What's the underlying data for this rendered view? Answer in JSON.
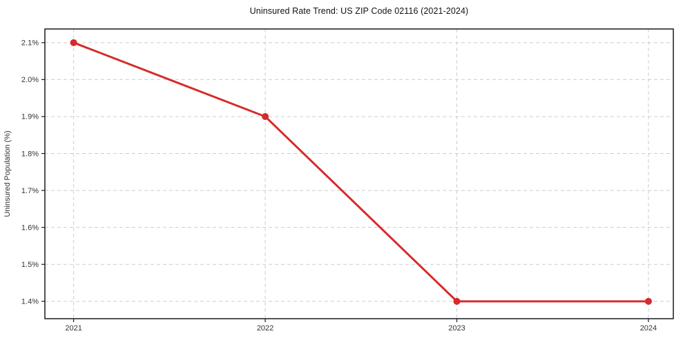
{
  "chart_data": {
    "type": "line",
    "title": "Uninsured Rate Trend: US ZIP Code 02116 (2021-2024)",
    "xlabel": "",
    "ylabel": "Uninsured Population (%)",
    "x": [
      2021,
      2022,
      2023,
      2024
    ],
    "values": [
      2.1,
      1.9,
      1.4,
      1.4
    ],
    "xtick_labels": [
      "2021",
      "2022",
      "2023",
      "2024"
    ],
    "ytick_values": [
      1.4,
      1.5,
      1.6,
      1.7,
      1.8,
      1.9,
      2.0,
      2.1
    ],
    "ytick_labels": [
      "1.4%",
      "1.5%",
      "1.6%",
      "1.7%",
      "1.8%",
      "1.9%",
      "2.0%",
      "2.1%"
    ],
    "xlim": [
      2020.85,
      2024.13
    ],
    "ylim": [
      1.353,
      2.137
    ],
    "grid": true,
    "legend": "none",
    "colors": {
      "line": "#d62b2b",
      "marker": "#d62b2b",
      "grid": "#cccccc",
      "axis": "#1a1a1a",
      "tick_label": "#333333",
      "title": "#111111"
    }
  }
}
